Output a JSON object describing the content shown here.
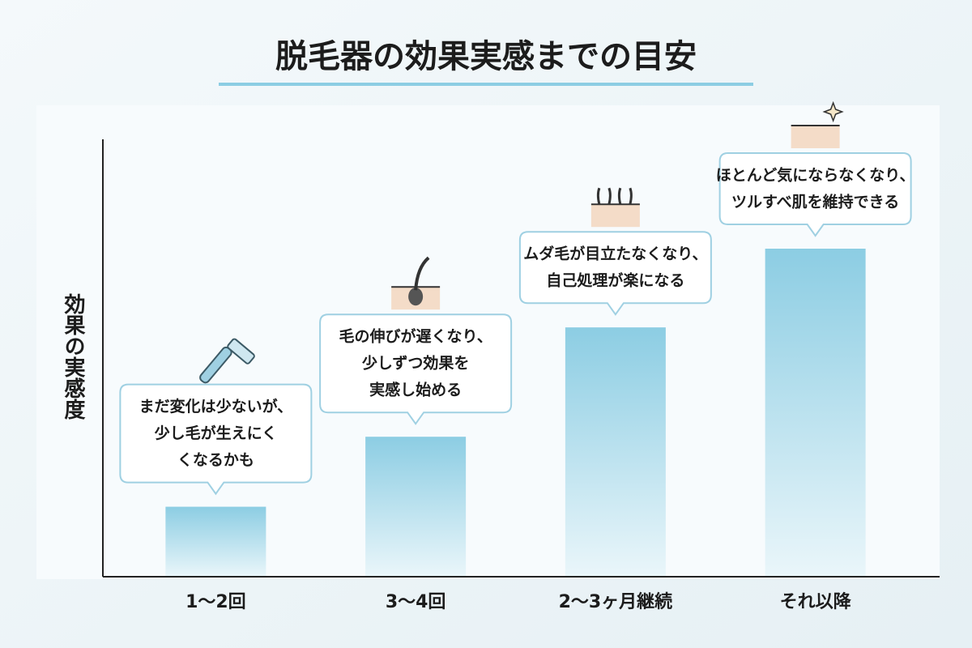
{
  "chart_data": {
    "type": "bar",
    "title": "脱毛器の効果実感までの目安",
    "y_label": "効果の実感度",
    "categories": [
      "1〜2回",
      "3〜4回",
      "2〜3ヶ月継続",
      "それ以降"
    ],
    "values": [
      16,
      32,
      57,
      75
    ],
    "ylim": [
      0,
      100
    ],
    "color": "#8ccde3",
    "callouts": [
      [
        "まだ変化は少ないが、",
        "少し毛が生えにく",
        "くなるかも"
      ],
      [
        "毛の伸びが遅くなり、",
        "少しずつ効果を",
        "実感し始める"
      ],
      [
        "ムダ毛が目立たなくなり、",
        "自己処理が楽になる"
      ],
      [
        "ほとんど気にならなくなり、",
        "ツルすべ肌を維持できる"
      ]
    ]
  }
}
